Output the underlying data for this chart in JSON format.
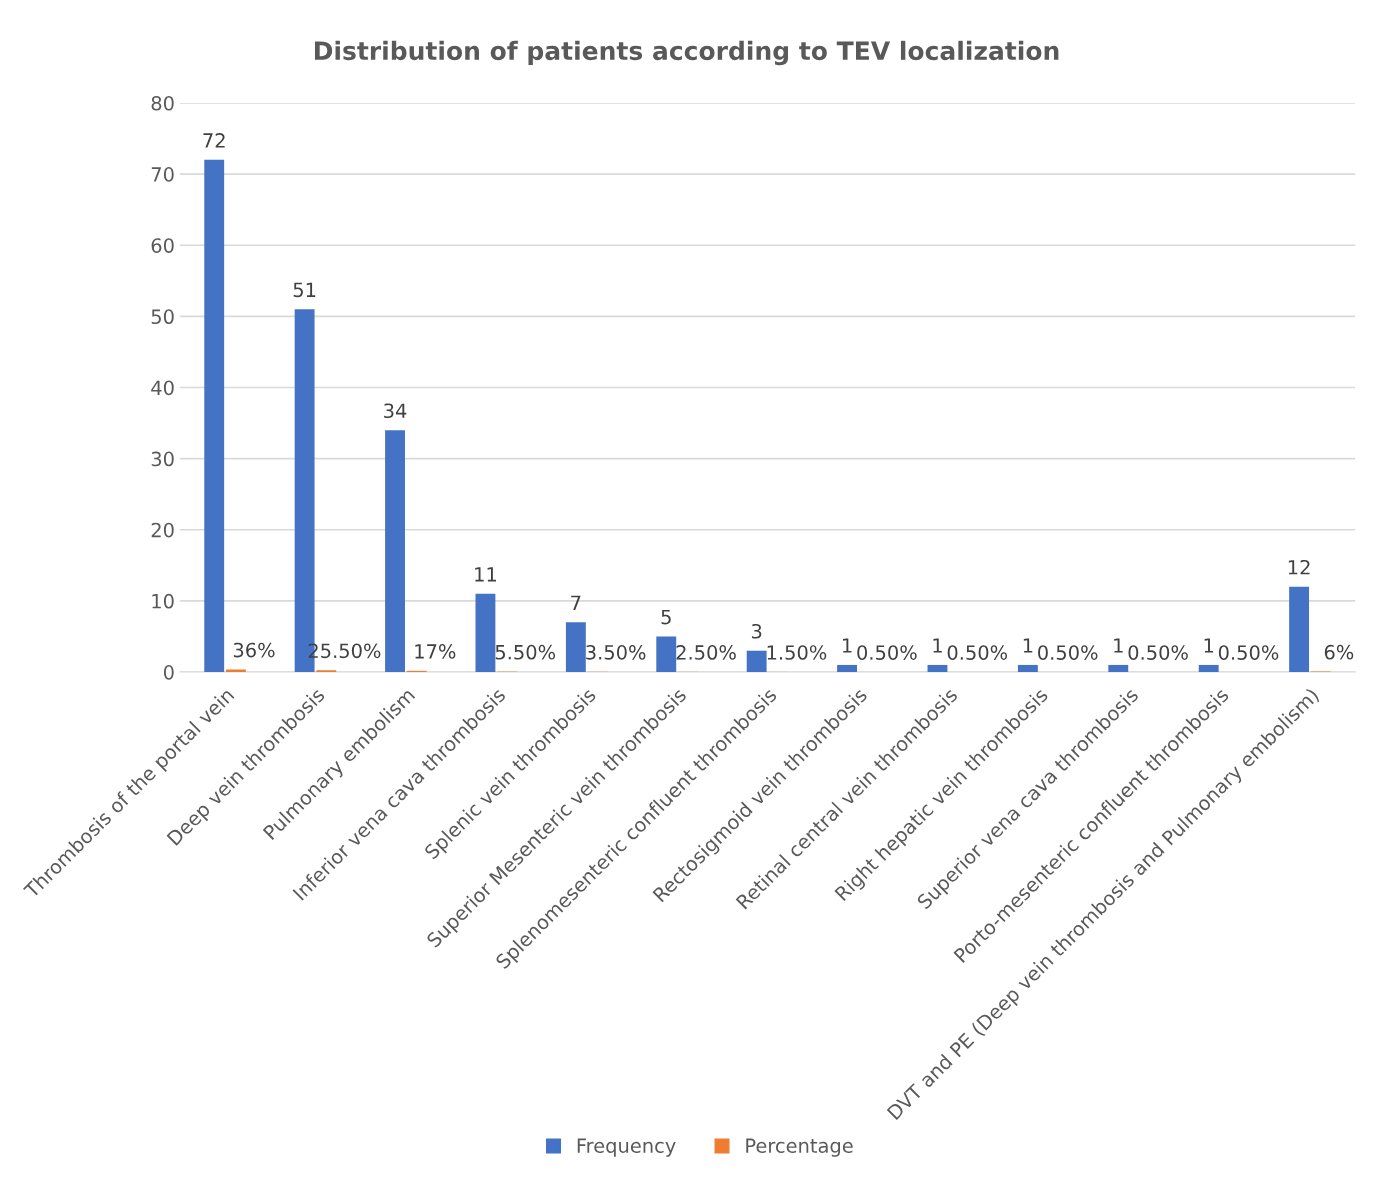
{
  "chart_data": {
    "type": "bar",
    "title": "Distribution of patients according to TEV localization",
    "categories": [
      "Thrombosis of the portal vein",
      "Deep vein thrombosis",
      "Pulmonary embolism",
      "Inferior vena cava thrombosis",
      "Splenic vein thrombosis",
      "Superior Mesenteric vein thrombosis",
      "Splenomesenteric confluent thrombosis",
      "Rectosigmoid vein thrombosis",
      "Retinal central vein thrombosis",
      "Right hepatic vein thrombosis",
      "Superior vena cava thrombosis",
      "Porto-mesenteric confluent thrombosis",
      "DVT and PE (Deep vein thrombosis and Pulmonary embolism)"
    ],
    "series": [
      {
        "name": "Frequency",
        "color": "#4472c4",
        "values": [
          72,
          51,
          34,
          11,
          7,
          5,
          3,
          1,
          1,
          1,
          1,
          1,
          12
        ],
        "value_labels": [
          "72",
          "51",
          "34",
          "11",
          "7",
          "5",
          "3",
          "1",
          "1",
          "1",
          "1",
          "1",
          "12"
        ]
      },
      {
        "name": "Percentage",
        "color": "#ed7d31",
        "values": [
          0.36,
          0.255,
          0.17,
          0.055,
          0.035,
          0.025,
          0.015,
          0.005,
          0.005,
          0.005,
          0.005,
          0.005,
          0.06
        ],
        "value_labels": [
          "36%",
          "25.50%",
          "17%",
          "5.50%",
          "3.50%",
          "2.50%",
          "1.50%",
          "0.50%",
          "0.50%",
          "0.50%",
          "0.50%",
          "0.50%",
          "6%"
        ]
      }
    ],
    "ylim": [
      0,
      80
    ],
    "yticks": [
      0,
      10,
      20,
      30,
      40,
      50,
      60,
      70,
      80
    ],
    "grid": "y",
    "legend": "bottom"
  }
}
